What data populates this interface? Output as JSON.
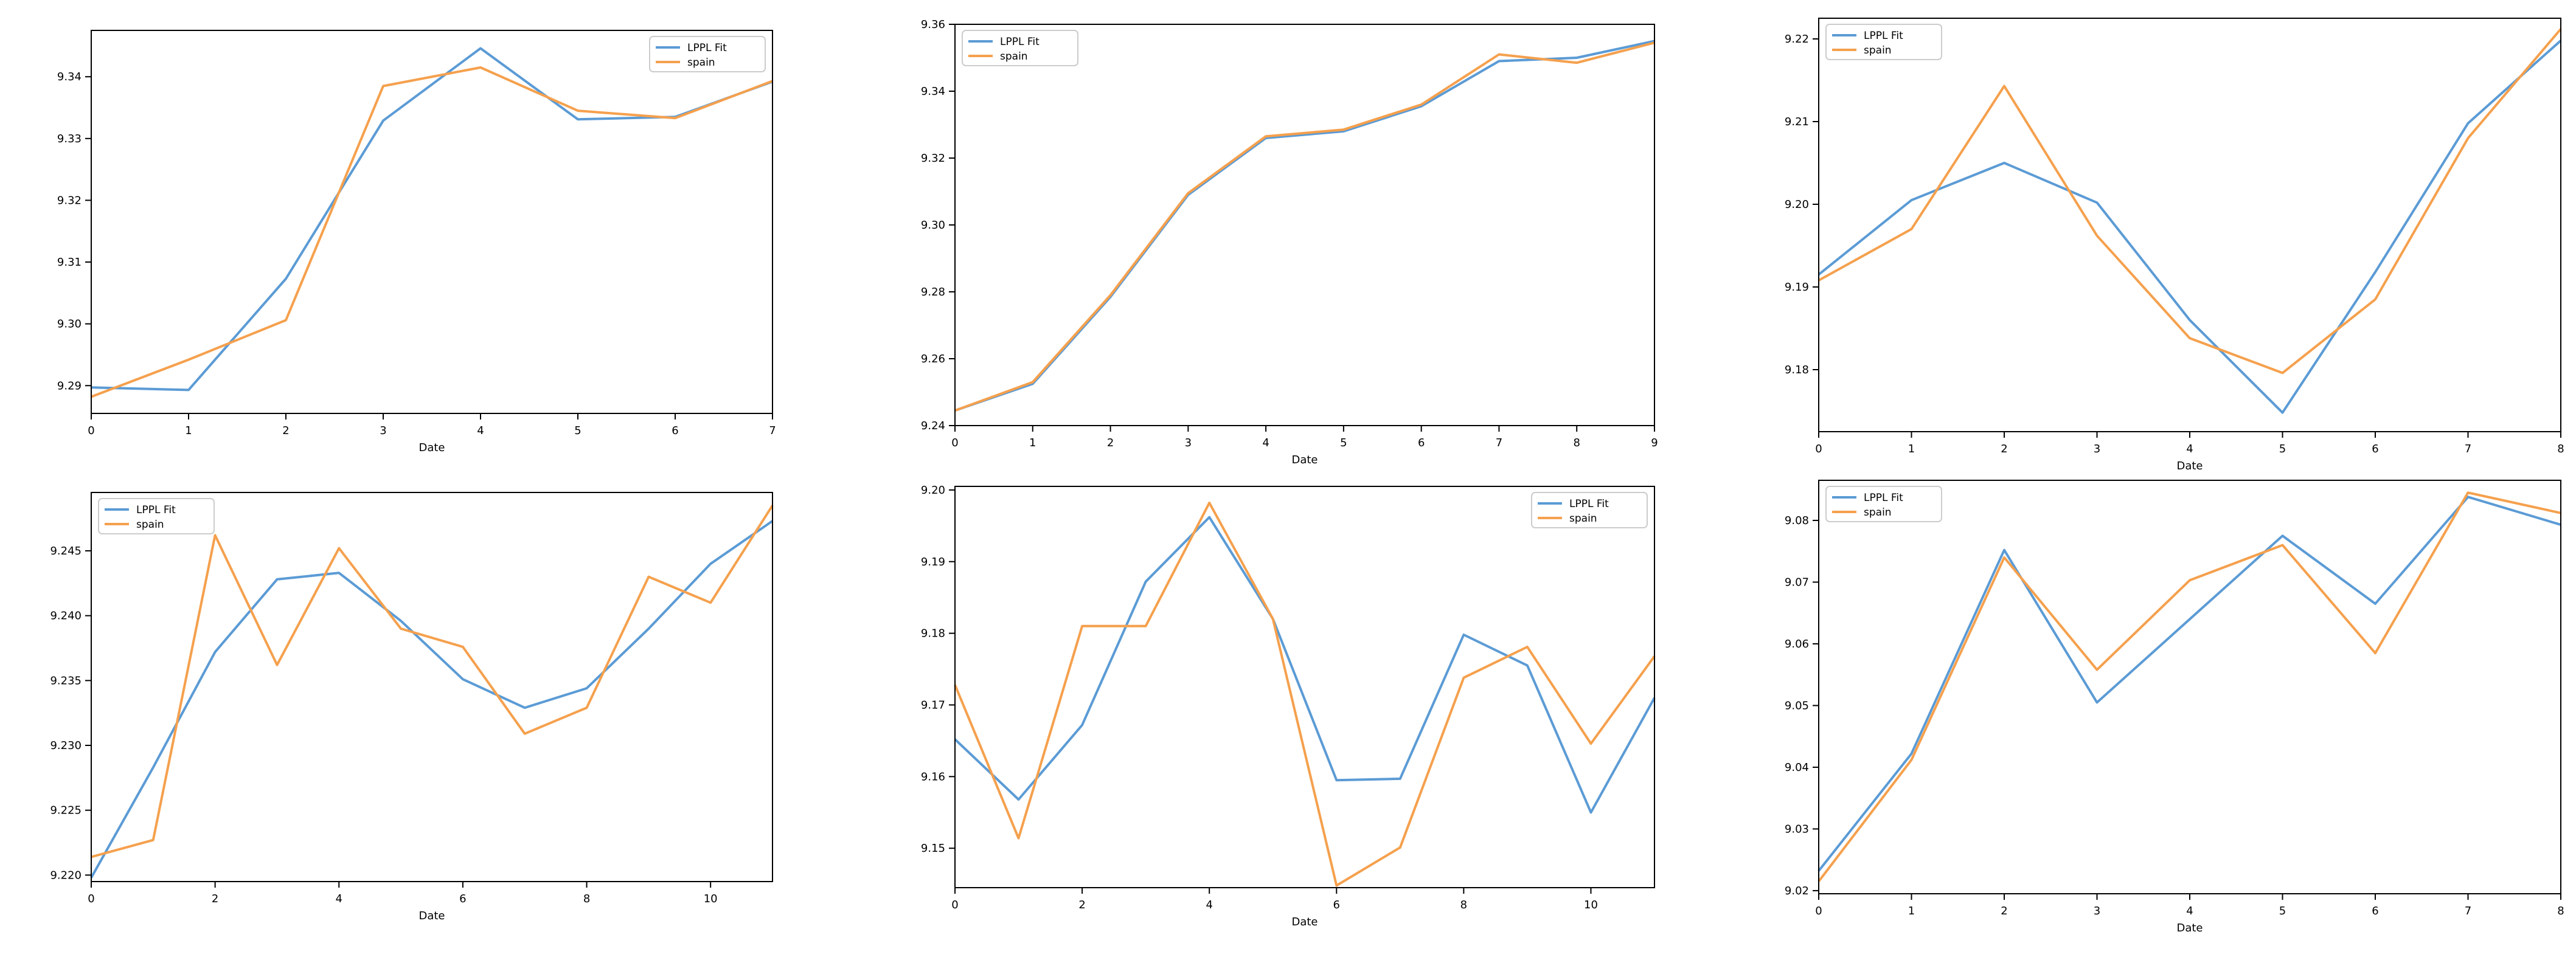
{
  "colors": {
    "fit": "#5b9bd5",
    "spain": "#f5a04d"
  },
  "chart_data": [
    {
      "type": "line",
      "xlabel": "Date",
      "legend_position": "top-right",
      "xlim": [
        0,
        7
      ],
      "ylim": [
        9.2855,
        9.3475
      ],
      "xticks": [
        0,
        1,
        2,
        3,
        4,
        5,
        6,
        7
      ],
      "yticks": [
        9.29,
        9.3,
        9.31,
        9.32,
        9.33,
        9.34
      ],
      "ytick_labels": [
        "9.29",
        "9.30",
        "9.31",
        "9.32",
        "9.33",
        "9.34"
      ],
      "x": [
        0,
        1,
        2,
        3,
        4,
        5,
        6,
        7
      ],
      "series": [
        {
          "name": "LPPL Fit",
          "color": "#5b9bd5",
          "values": [
            9.2897,
            9.2893,
            9.3073,
            9.3329,
            9.3446,
            9.3331,
            9.3335,
            9.3392
          ]
        },
        {
          "name": "spain",
          "color": "#f5a04d",
          "values": [
            9.2882,
            9.2942,
            9.3006,
            9.3385,
            9.3415,
            9.3345,
            9.3333,
            9.3393
          ]
        }
      ]
    },
    {
      "type": "line",
      "xlabel": "Date",
      "legend_position": "top-left",
      "xlim": [
        0,
        9
      ],
      "ylim": [
        9.24,
        9.36
      ],
      "xticks": [
        0,
        1,
        2,
        3,
        4,
        5,
        6,
        7,
        8,
        9
      ],
      "yticks": [
        9.24,
        9.26,
        9.28,
        9.3,
        9.32,
        9.34,
        9.36
      ],
      "ytick_labels": [
        "9.24",
        "9.26",
        "9.28",
        "9.30",
        "9.32",
        "9.34",
        "9.36"
      ],
      "x": [
        0,
        1,
        2,
        3,
        4,
        5,
        6,
        7,
        8,
        9
      ],
      "series": [
        {
          "name": "LPPL Fit",
          "color": "#5b9bd5",
          "values": [
            9.2445,
            9.2525,
            9.2785,
            9.309,
            9.326,
            9.328,
            9.3355,
            9.349,
            9.35,
            9.355
          ]
        },
        {
          "name": "spain",
          "color": "#f5a04d",
          "values": [
            9.2445,
            9.253,
            9.279,
            9.3095,
            9.3265,
            9.3285,
            9.336,
            9.351,
            9.3485,
            9.3545
          ]
        }
      ]
    },
    {
      "type": "line",
      "xlabel": "Date",
      "legend_position": "top-left",
      "xlim": [
        0,
        8
      ],
      "ylim": [
        9.1725,
        9.2225
      ],
      "xticks": [
        0,
        1,
        2,
        3,
        4,
        5,
        6,
        7,
        8
      ],
      "yticks": [
        9.18,
        9.19,
        9.2,
        9.21,
        9.22
      ],
      "ytick_labels": [
        "9.18",
        "9.19",
        "9.20",
        "9.21",
        "9.22"
      ],
      "x": [
        0,
        1,
        2,
        3,
        4,
        5,
        6,
        7,
        8
      ],
      "series": [
        {
          "name": "LPPL Fit",
          "color": "#5b9bd5",
          "values": [
            9.1915,
            9.2005,
            9.205,
            9.2002,
            9.186,
            9.1748,
            9.1918,
            9.2098,
            9.2198
          ]
        },
        {
          "name": "spain",
          "color": "#f5a04d",
          "values": [
            9.1908,
            9.197,
            9.2143,
            9.1962,
            9.1838,
            9.1796,
            9.1885,
            9.208,
            9.2212
          ]
        }
      ]
    },
    {
      "type": "line",
      "xlabel": "Date",
      "legend_position": "top-left",
      "xlim": [
        0,
        11
      ],
      "ylim": [
        9.2195,
        9.2495
      ],
      "xticks": [
        0,
        2,
        4,
        6,
        8,
        10
      ],
      "yticks": [
        9.22,
        9.225,
        9.23,
        9.235,
        9.24,
        9.245
      ],
      "ytick_labels": [
        "9.220",
        "9.225",
        "9.230",
        "9.235",
        "9.240",
        "9.245"
      ],
      "x": [
        0,
        1,
        2,
        3,
        4,
        5,
        6,
        7,
        8,
        9,
        10,
        11
      ],
      "series": [
        {
          "name": "LPPL Fit",
          "color": "#5b9bd5",
          "values": [
            9.2198,
            9.2283,
            9.2372,
            9.2428,
            9.2433,
            9.2396,
            9.2351,
            9.2329,
            9.2344,
            9.239,
            9.244,
            9.2473
          ]
        },
        {
          "name": "spain",
          "color": "#f5a04d",
          "values": [
            9.2214,
            9.2227,
            9.2462,
            9.2362,
            9.2452,
            9.239,
            9.2376,
            9.2309,
            9.2329,
            9.243,
            9.241,
            9.2485
          ]
        }
      ]
    },
    {
      "type": "line",
      "xlabel": "Date",
      "legend_position": "top-right",
      "xlim": [
        0,
        11
      ],
      "ylim": [
        9.1445,
        9.2005
      ],
      "xticks": [
        0,
        2,
        4,
        6,
        8,
        10
      ],
      "yticks": [
        9.15,
        9.16,
        9.17,
        9.18,
        9.19,
        9.2
      ],
      "ytick_labels": [
        "9.15",
        "9.16",
        "9.17",
        "9.18",
        "9.19",
        "9.20"
      ],
      "x": [
        0,
        1,
        2,
        3,
        4,
        5,
        6,
        7,
        8,
        9,
        10,
        11
      ],
      "series": [
        {
          "name": "LPPL Fit",
          "color": "#5b9bd5",
          "values": [
            9.1652,
            9.1568,
            9.1672,
            9.1872,
            9.1962,
            9.182,
            9.1595,
            9.1597,
            9.1798,
            9.1755,
            9.155,
            9.171
          ]
        },
        {
          "name": "spain",
          "color": "#f5a04d",
          "values": [
            9.1728,
            9.1514,
            9.181,
            9.181,
            9.1982,
            9.182,
            9.1448,
            9.1501,
            9.1738,
            9.1781,
            9.1646,
            9.1768
          ]
        }
      ]
    },
    {
      "type": "line",
      "xlabel": "Date",
      "legend_position": "top-left",
      "xlim": [
        0,
        8
      ],
      "ylim": [
        9.0195,
        9.0865
      ],
      "xticks": [
        0,
        1,
        2,
        3,
        4,
        5,
        6,
        7,
        8
      ],
      "yticks": [
        9.02,
        9.03,
        9.04,
        9.05,
        9.06,
        9.07,
        9.08
      ],
      "ytick_labels": [
        "9.02",
        "9.03",
        "9.04",
        "9.05",
        "9.06",
        "9.07",
        "9.08"
      ],
      "x": [
        0,
        1,
        2,
        3,
        4,
        5,
        6,
        7,
        8
      ],
      "series": [
        {
          "name": "LPPL Fit",
          "color": "#5b9bd5",
          "values": [
            9.0232,
            9.0422,
            9.0752,
            9.0505,
            9.064,
            9.0775,
            9.0665,
            9.0838,
            9.0793
          ]
        },
        {
          "name": "spain",
          "color": "#f5a04d",
          "values": [
            9.0215,
            9.0412,
            9.074,
            9.0558,
            9.0703,
            9.076,
            9.0585,
            9.0845,
            9.0812
          ]
        }
      ]
    }
  ]
}
